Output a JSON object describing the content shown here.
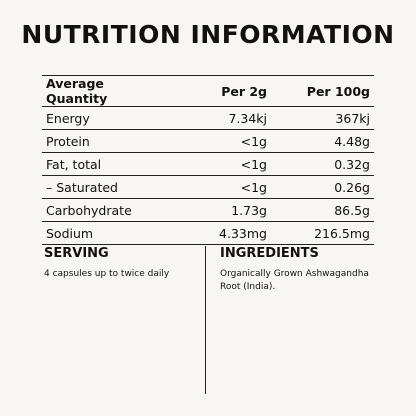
{
  "title": "NUTRITION INFORMATION",
  "table": {
    "header": [
      "Average Quantity",
      "Per 2g",
      "Per 100g"
    ],
    "rows": [
      [
        "Energy",
        "7.34kj",
        "367kj"
      ],
      [
        "Protein",
        "<1g",
        "4.48g"
      ],
      [
        "Fat, total",
        "<1g",
        "0.32g"
      ],
      [
        "– Saturated",
        "<1g",
        "0.26g"
      ],
      [
        "Carbohydrate",
        "1.73g",
        "86.5g"
      ],
      [
        "Sodium",
        "4.33mg",
        "216.5mg"
      ]
    ]
  },
  "serving": {
    "heading": "SERVING",
    "text": "4 capsules up to twice daily"
  },
  "ingredients": {
    "heading": "INGREDIENTS",
    "text": "Organically Grown Ashwagandha Root (India)."
  }
}
